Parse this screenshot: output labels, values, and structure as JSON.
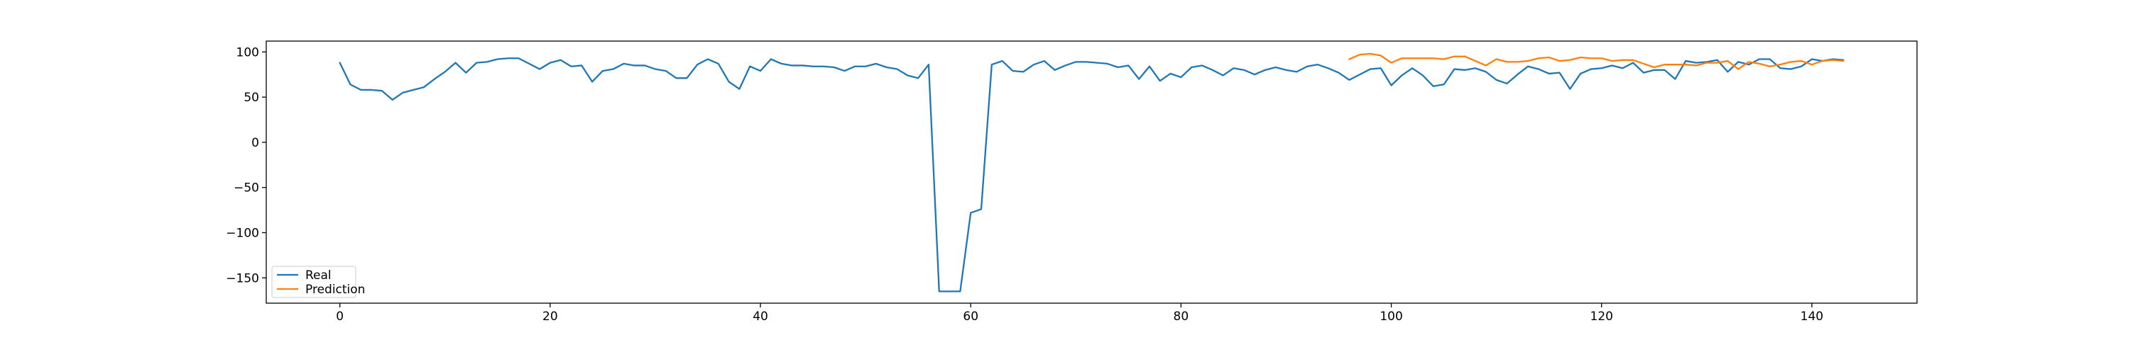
{
  "chart_data": {
    "type": "line",
    "title": "",
    "xlabel": "",
    "ylabel": "",
    "xlim": [
      -7,
      150
    ],
    "ylim": [
      -178,
      112
    ],
    "xticks": [
      0,
      20,
      40,
      60,
      80,
      100,
      120,
      140
    ],
    "yticks": [
      100,
      50,
      0,
      -50,
      -100,
      -150
    ],
    "grid": false,
    "legend": {
      "location": "lower-left"
    },
    "series": [
      {
        "name": "Real",
        "color": "#1f77b4",
        "x_start": 0,
        "values": [
          88,
          64,
          58,
          58,
          57,
          47,
          55,
          58,
          61,
          70,
          78,
          88,
          77,
          88,
          89,
          92,
          93,
          93,
          87,
          81,
          88,
          91,
          84,
          85,
          67,
          79,
          81,
          87,
          85,
          85,
          81,
          79,
          71,
          71,
          86,
          92,
          87,
          67,
          59,
          84,
          79,
          92,
          87,
          85,
          85,
          84,
          84,
          83,
          79,
          84,
          84,
          87,
          83,
          81,
          74,
          71,
          86,
          -165,
          -165,
          -165,
          -78,
          -74,
          86,
          90,
          79,
          78,
          86,
          90,
          80,
          85,
          89,
          89,
          88,
          87,
          83,
          85,
          70,
          84,
          68,
          76,
          72,
          83,
          85,
          80,
          74,
          82,
          80,
          75,
          80,
          83,
          80,
          78,
          84,
          86,
          82,
          77,
          69,
          75,
          81,
          82,
          63,
          74,
          82,
          74,
          62,
          64,
          81,
          80,
          82,
          78,
          69,
          65,
          75,
          84,
          81,
          76,
          77,
          59,
          76,
          81,
          82,
          85,
          82,
          88,
          77,
          80,
          80,
          70,
          90,
          88,
          89,
          91,
          78,
          89,
          86,
          92,
          92,
          82,
          81,
          84,
          92,
          90,
          92,
          91
        ]
      },
      {
        "name": "Prediction",
        "color": "#ff7f0e",
        "x_start": 96,
        "values": [
          92,
          97,
          98,
          96,
          88,
          93,
          93,
          93,
          93,
          92,
          95,
          95,
          90,
          85,
          92,
          89,
          89,
          90,
          93,
          94,
          90,
          91,
          94,
          93,
          93,
          90,
          91,
          91,
          87,
          83,
          86,
          86,
          86,
          85,
          88,
          88,
          90,
          81,
          89,
          87,
          84,
          86,
          89,
          90,
          86,
          90,
          91,
          90
        ]
      }
    ]
  }
}
